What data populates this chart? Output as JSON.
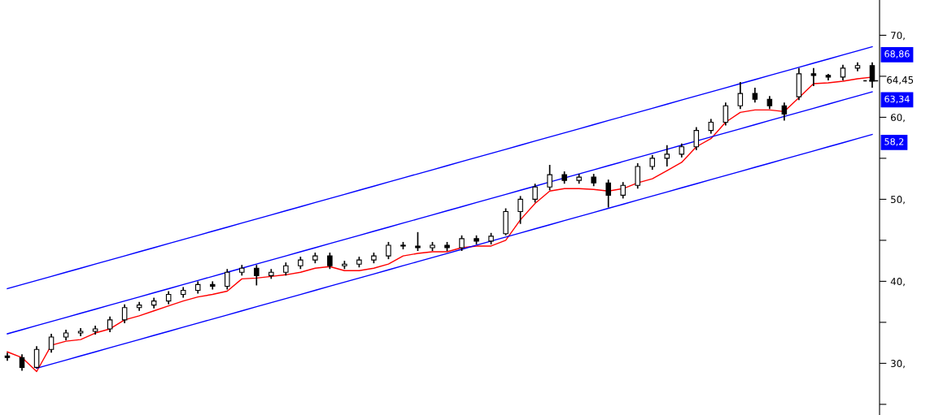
{
  "chart_data": {
    "type": "candlestick",
    "categories": [
      null,
      null,
      null,
      null,
      null,
      null,
      null,
      null,
      null,
      null,
      null,
      null,
      null,
      null,
      null,
      null,
      null,
      null,
      null,
      null,
      null,
      null,
      null,
      null,
      null,
      null,
      null,
      null,
      null,
      null,
      null,
      null,
      null,
      null,
      null,
      null,
      null,
      null,
      null,
      null,
      null,
      null,
      null,
      null,
      null,
      null,
      null,
      null,
      null,
      null,
      null,
      null,
      null,
      null,
      null,
      null,
      null,
      null,
      null,
      null
    ],
    "color": "#000000",
    "ohlc": [
      [
        30.9,
        31.3,
        30.3,
        30.7
      ],
      [
        30.7,
        31.1,
        29.1,
        29.5
      ],
      [
        29.5,
        32.1,
        29.4,
        31.7
      ],
      [
        31.7,
        33.6,
        31.3,
        33.2
      ],
      [
        33.2,
        34.1,
        32.8,
        33.7
      ],
      [
        33.7,
        34.3,
        33.3,
        33.9
      ],
      [
        33.9,
        34.6,
        33.5,
        34.2
      ],
      [
        34.2,
        35.7,
        33.8,
        35.3
      ],
      [
        35.3,
        37.2,
        34.9,
        36.8
      ],
      [
        36.8,
        37.5,
        36.4,
        37.1
      ],
      [
        37.1,
        38.0,
        36.7,
        37.6
      ],
      [
        37.6,
        38.8,
        37.2,
        38.4
      ],
      [
        38.4,
        39.3,
        38.0,
        38.9
      ],
      [
        38.9,
        40.0,
        38.5,
        39.6
      ],
      [
        39.6,
        40.0,
        39.0,
        39.4
      ],
      [
        39.4,
        41.5,
        39.0,
        41.1
      ],
      [
        41.1,
        42.0,
        40.7,
        41.6
      ],
      [
        41.6,
        42.0,
        39.5,
        40.7
      ],
      [
        40.7,
        41.5,
        40.3,
        41.1
      ],
      [
        41.1,
        42.3,
        40.7,
        41.9
      ],
      [
        41.9,
        43.0,
        41.5,
        42.6
      ],
      [
        42.6,
        43.5,
        42.2,
        43.1
      ],
      [
        43.1,
        43.5,
        41.5,
        41.9
      ],
      [
        41.9,
        42.5,
        41.5,
        42.1
      ],
      [
        42.1,
        43.0,
        41.7,
        42.6
      ],
      [
        42.6,
        43.5,
        42.2,
        43.1
      ],
      [
        43.1,
        44.8,
        42.7,
        44.4
      ],
      [
        44.4,
        44.8,
        43.9,
        44.3
      ],
      [
        44.3,
        46.0,
        43.7,
        44.1
      ],
      [
        44.1,
        44.8,
        43.7,
        44.4
      ],
      [
        44.4,
        44.8,
        43.7,
        44.1
      ],
      [
        44.1,
        45.6,
        43.7,
        45.2
      ],
      [
        45.2,
        45.6,
        44.5,
        44.9
      ],
      [
        44.9,
        45.9,
        44.5,
        45.5
      ],
      [
        45.8,
        48.9,
        45.6,
        48.5
      ],
      [
        48.5,
        50.4,
        47.0,
        50.0
      ],
      [
        50.0,
        51.9,
        49.6,
        51.5
      ],
      [
        51.5,
        54.2,
        51.1,
        53.0
      ],
      [
        53.0,
        53.4,
        51.9,
        52.3
      ],
      [
        52.3,
        53.1,
        51.9,
        52.7
      ],
      [
        52.7,
        53.1,
        51.6,
        52.0
      ],
      [
        52.0,
        52.4,
        49.0,
        50.5
      ],
      [
        50.5,
        52.1,
        50.1,
        51.7
      ],
      [
        51.7,
        54.4,
        51.3,
        54.0
      ],
      [
        54.0,
        55.4,
        53.6,
        55.0
      ],
      [
        55.0,
        56.6,
        54.0,
        55.5
      ],
      [
        55.5,
        56.8,
        55.1,
        56.4
      ],
      [
        56.4,
        58.8,
        56.0,
        58.4
      ],
      [
        58.4,
        59.8,
        58.0,
        59.4
      ],
      [
        59.4,
        61.8,
        59.0,
        61.4
      ],
      [
        61.4,
        64.3,
        61.0,
        62.9
      ],
      [
        62.9,
        63.6,
        61.8,
        62.2
      ],
      [
        62.2,
        62.6,
        61.0,
        61.4
      ],
      [
        61.4,
        61.8,
        59.6,
        60.4
      ],
      [
        62.5,
        66.0,
        62.1,
        65.3
      ],
      [
        65.3,
        66.0,
        63.8,
        65.1
      ],
      [
        65.1,
        65.3,
        64.5,
        64.9
      ],
      [
        64.9,
        66.4,
        64.5,
        66.0
      ],
      [
        66.0,
        66.7,
        65.6,
        66.3
      ],
      [
        66.3,
        66.7,
        63.6,
        64.4
      ]
    ],
    "series": [
      {
        "type": "line",
        "color": "#ff0000",
        "values": [
          31.4,
          30.7,
          29.0,
          32.2,
          32.7,
          32.9,
          33.7,
          34.2,
          35.3,
          35.8,
          36.4,
          37.0,
          37.6,
          38.1,
          38.4,
          38.8,
          40.3,
          40.4,
          40.6,
          40.8,
          41.1,
          41.6,
          41.8,
          41.3,
          41.3,
          41.6,
          42.1,
          43.1,
          43.4,
          43.6,
          43.6,
          44.1,
          44.3,
          44.3,
          45.0,
          47.5,
          49.5,
          51.0,
          51.3,
          51.3,
          51.2,
          51.0,
          51.3,
          52.0,
          52.5,
          53.5,
          54.5,
          56.4,
          57.4,
          59.4,
          60.6,
          60.9,
          60.9,
          60.7,
          62.4,
          64.1,
          64.2,
          64.4,
          64.7,
          64.9
        ]
      },
      {
        "type": "line",
        "color": "#0000ff",
        "values": [
          39.1,
          39.6,
          40.1,
          40.6,
          41.1,
          41.6,
          42.1,
          42.6,
          43.1,
          43.6,
          44.1,
          44.6,
          45.1,
          45.6,
          46.1,
          46.6,
          47.1,
          47.6,
          48.1,
          48.6,
          49.1,
          49.6,
          50.1,
          50.6,
          51.1,
          51.6,
          52.1,
          52.6,
          53.1,
          53.6,
          54.1,
          54.6,
          55.1,
          55.6,
          56.1,
          56.6,
          57.1,
          57.6,
          58.1,
          58.6,
          59.1,
          59.6,
          60.1,
          60.6,
          61.1,
          61.6,
          62.1,
          62.6,
          63.1,
          63.6,
          64.1,
          64.6,
          65.1,
          65.6,
          66.1,
          66.6,
          67.1,
          67.6,
          68.1,
          68.6
        ]
      },
      {
        "type": "line",
        "color": "#0000ff",
        "values": [
          33.6,
          34.1,
          34.6,
          35.1,
          35.6,
          36.1,
          36.6,
          37.1,
          37.6,
          38.1,
          38.6,
          39.1,
          39.6,
          40.1,
          40.6,
          41.1,
          41.6,
          42.1,
          42.6,
          43.1,
          43.6,
          44.1,
          44.6,
          45.1,
          45.6,
          46.1,
          46.6,
          47.1,
          47.6,
          48.1,
          48.6,
          49.1,
          49.6,
          50.1,
          50.6,
          51.1,
          51.6,
          52.1,
          52.6,
          53.1,
          53.6,
          54.1,
          54.6,
          55.1,
          55.6,
          56.1,
          56.6,
          57.1,
          57.6,
          58.1,
          58.6,
          59.1,
          59.6,
          60.1,
          60.6,
          61.1,
          61.6,
          62.1,
          62.6,
          63.1
        ]
      },
      {
        "type": "line",
        "color": "#0000ff",
        "values": [
          null,
          null,
          29.4,
          29.9,
          30.4,
          30.9,
          31.4,
          31.9,
          32.4,
          32.9,
          33.4,
          33.9,
          34.4,
          34.9,
          35.4,
          35.9,
          36.4,
          36.9,
          37.4,
          37.9,
          38.4,
          38.9,
          39.4,
          39.9,
          40.4,
          40.9,
          41.4,
          41.9,
          42.4,
          42.9,
          43.4,
          43.9,
          44.4,
          44.9,
          45.4,
          45.9,
          46.4,
          46.9,
          47.4,
          47.9,
          48.4,
          48.9,
          49.4,
          49.9,
          50.4,
          50.9,
          51.4,
          51.9,
          52.4,
          52.9,
          53.4,
          53.9,
          54.4,
          54.9,
          55.4,
          55.9,
          56.4,
          56.9,
          57.4,
          57.9
        ]
      }
    ],
    "ylim": [
      23.7,
      74.3
    ],
    "yticks": [
      {
        "value": 25,
        "label": null
      },
      {
        "value": 30,
        "label": "30,"
      },
      {
        "value": 35,
        "label": null
      },
      {
        "value": 40,
        "label": "40,"
      },
      {
        "value": 45,
        "label": null
      },
      {
        "value": 50,
        "label": "50,"
      },
      {
        "value": 55,
        "label": null
      },
      {
        "value": 60,
        "label": "60,"
      },
      {
        "value": 65,
        "label": null
      },
      {
        "value": 70,
        "label": "70,"
      }
    ],
    "tick_labels": "y",
    "grid": false,
    "ref_lines": [
      {
        "axis": "y",
        "value": 64.45,
        "label": "64,45",
        "line_style": "dashed"
      }
    ],
    "annotations": [
      "68,86",
      "63,34",
      "58,2"
    ]
  }
}
